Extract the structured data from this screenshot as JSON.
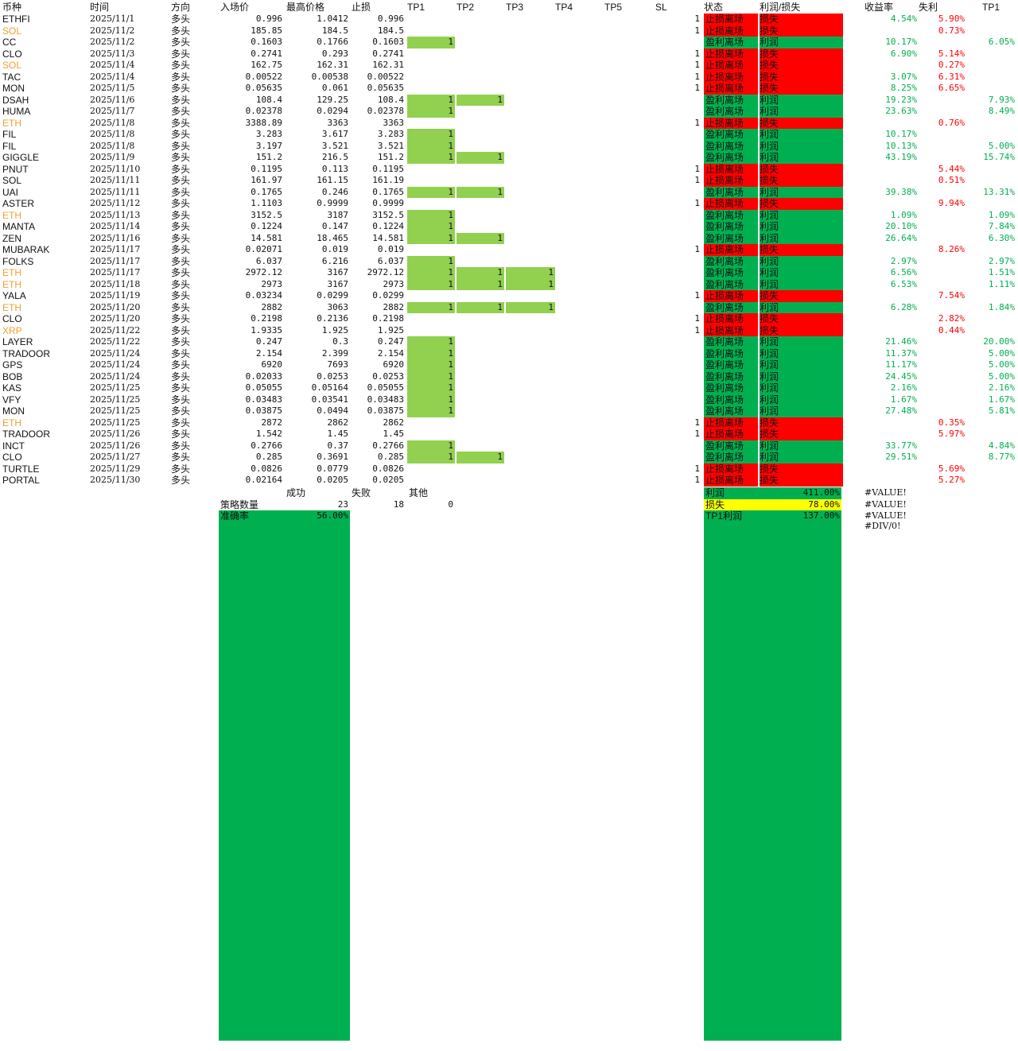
{
  "colors": {
    "tp_fill": "#92d050",
    "status_fail": "#ff0000",
    "status_win": "#00b050",
    "positive_text": "#00b050",
    "negative_text": "#ff0000",
    "highlight_coin": "#f0a030",
    "yellow": "#ffff00"
  },
  "headers": [
    "币种",
    "时间",
    "方向",
    "入场价",
    "最高价格",
    "止损",
    "TP1",
    "TP2",
    "TP3",
    "TP4",
    "TP5",
    "SL",
    "状态",
    "利润/损失",
    "收益率",
    "失利",
    "TP1"
  ],
  "rows": [
    {
      "coin": "ETHFI",
      "hl": false,
      "date": "2025/11/1",
      "dir": "多头",
      "entry": "0.996",
      "high": "1.0412",
      "stop": "0.996",
      "tp1": "",
      "tp2": "",
      "tp3": "",
      "sl": "1",
      "status": "止损离场",
      "pl": "损失",
      "ret": "4.54%",
      "loss": "5.90%",
      "tp1p": ""
    },
    {
      "coin": "SOL",
      "hl": true,
      "date": "2025/11/2",
      "dir": "多头",
      "entry": "185.85",
      "high": "184.5",
      "stop": "184.5",
      "tp1": "",
      "tp2": "",
      "tp3": "",
      "sl": "1",
      "status": "止损离场",
      "pl": "损失",
      "ret": "",
      "loss": "0.73%",
      "tp1p": ""
    },
    {
      "coin": "CC",
      "hl": false,
      "date": "2025/11/2",
      "dir": "多头",
      "entry": "0.1603",
      "high": "0.1766",
      "stop": "0.1603",
      "tp1": "1",
      "tp2": "",
      "tp3": "",
      "sl": "",
      "status": "盈利离场",
      "pl": "利润",
      "ret": "10.17%",
      "loss": "",
      "tp1p": "6.05%"
    },
    {
      "coin": "CLO",
      "hl": false,
      "date": "2025/11/3",
      "dir": "多头",
      "entry": "0.2741",
      "high": "0.293",
      "stop": "0.2741",
      "tp1": "",
      "tp2": "",
      "tp3": "",
      "sl": "1",
      "status": "止损离场",
      "pl": "损失",
      "ret": "6.90%",
      "loss": "5.14%",
      "tp1p": ""
    },
    {
      "coin": "SOL",
      "hl": true,
      "date": "2025/11/4",
      "dir": "多头",
      "entry": "162.75",
      "high": "162.31",
      "stop": "162.31",
      "tp1": "",
      "tp2": "",
      "tp3": "",
      "sl": "1",
      "status": "止损离场",
      "pl": "损失",
      "ret": "",
      "loss": "0.27%",
      "tp1p": ""
    },
    {
      "coin": "TAC",
      "hl": false,
      "date": "2025/11/4",
      "dir": "多头",
      "entry": "0.00522",
      "high": "0.00538",
      "stop": "0.00522",
      "tp1": "",
      "tp2": "",
      "tp3": "",
      "sl": "1",
      "status": "止损离场",
      "pl": "损失",
      "ret": "3.07%",
      "loss": "6.31%",
      "tp1p": ""
    },
    {
      "coin": "MON",
      "hl": false,
      "date": "2025/11/5",
      "dir": "多头",
      "entry": "0.05635",
      "high": "0.061",
      "stop": "0.05635",
      "tp1": "",
      "tp2": "",
      "tp3": "",
      "sl": "1",
      "status": "止损离场",
      "pl": "损失",
      "ret": "8.25%",
      "loss": "6.65%",
      "tp1p": ""
    },
    {
      "coin": "DSAH",
      "hl": false,
      "date": "2025/11/6",
      "dir": "多头",
      "entry": "108.4",
      "high": "129.25",
      "stop": "108.4",
      "tp1": "1",
      "tp2": "1",
      "tp3": "",
      "sl": "",
      "status": "盈利离场",
      "pl": "利润",
      "ret": "19.23%",
      "loss": "",
      "tp1p": "7.93%"
    },
    {
      "coin": "HUMA",
      "hl": false,
      "date": "2025/11/7",
      "dir": "多头",
      "entry": "0.02378",
      "high": "0.0294",
      "stop": "0.02378",
      "tp1": "1",
      "tp2": "",
      "tp3": "",
      "sl": "",
      "status": "盈利离场",
      "pl": "利润",
      "ret": "23.63%",
      "loss": "",
      "tp1p": "8.49%"
    },
    {
      "coin": "ETH",
      "hl": true,
      "date": "2025/11/8",
      "dir": "多头",
      "entry": "3388.89",
      "high": "3363",
      "stop": "3363",
      "tp1": "",
      "tp2": "",
      "tp3": "",
      "sl": "1",
      "status": "止损离场",
      "pl": "损失",
      "ret": "",
      "loss": "0.76%",
      "tp1p": ""
    },
    {
      "coin": "FIL",
      "hl": false,
      "date": "2025/11/8",
      "dir": "多头",
      "entry": "3.283",
      "high": "3.617",
      "stop": "3.283",
      "tp1": "1",
      "tp2": "",
      "tp3": "",
      "sl": "",
      "status": "盈利离场",
      "pl": "利润",
      "ret": "10.17%",
      "loss": "",
      "tp1p": ""
    },
    {
      "coin": "FIL",
      "hl": false,
      "date": "2025/11/8",
      "dir": "多头",
      "entry": "3.197",
      "high": "3.521",
      "stop": "3.521",
      "tp1": "1",
      "tp2": "",
      "tp3": "",
      "sl": "",
      "status": "盈利离场",
      "pl": "利润",
      "ret": "10.13%",
      "loss": "",
      "tp1p": "5.00%"
    },
    {
      "coin": "GIGGLE",
      "hl": false,
      "date": "2025/11/9",
      "dir": "多头",
      "entry": "151.2",
      "high": "216.5",
      "stop": "151.2",
      "tp1": "1",
      "tp2": "1",
      "tp3": "",
      "sl": "",
      "status": "盈利离场",
      "pl": "利润",
      "ret": "43.19%",
      "loss": "",
      "tp1p": "15.74%"
    },
    {
      "coin": "PNUT",
      "hl": false,
      "date": "2025/11/10",
      "dir": "多头",
      "entry": "0.1195",
      "high": "0.113",
      "stop": "0.1195",
      "tp1": "",
      "tp2": "",
      "tp3": "",
      "sl": "1",
      "status": "止损离场",
      "pl": "损失",
      "ret": "",
      "loss": "5.44%",
      "tp1p": ""
    },
    {
      "coin": "SOL",
      "hl": false,
      "date": "2025/11/11",
      "dir": "多头",
      "entry": "161.97",
      "high": "161.15",
      "stop": "161.19",
      "tp1": "",
      "tp2": "",
      "tp3": "",
      "sl": "1",
      "status": "止损离场",
      "pl": "损失",
      "ret": "",
      "loss": "0.51%",
      "tp1p": ""
    },
    {
      "coin": "UAI",
      "hl": false,
      "date": "2025/11/11",
      "dir": "多头",
      "entry": "0.1765",
      "high": "0.246",
      "stop": "0.1765",
      "tp1": "1",
      "tp2": "1",
      "tp3": "",
      "sl": "",
      "status": "盈利离场",
      "pl": "利润",
      "ret": "39.38%",
      "loss": "",
      "tp1p": "13.31%"
    },
    {
      "coin": "ASTER",
      "hl": false,
      "date": "2025/11/12",
      "dir": "多头",
      "entry": "1.1103",
      "high": "0.9999",
      "stop": "0.9999",
      "tp1": "",
      "tp2": "",
      "tp3": "",
      "sl": "1",
      "status": "止损离场",
      "pl": "损失",
      "ret": "",
      "loss": "9.94%",
      "tp1p": ""
    },
    {
      "coin": "ETH",
      "hl": true,
      "date": "2025/11/13",
      "dir": "多头",
      "entry": "3152.5",
      "high": "3187",
      "stop": "3152.5",
      "tp1": "1",
      "tp2": "",
      "tp3": "",
      "sl": "",
      "status": "盈利离场",
      "pl": "利润",
      "ret": "1.09%",
      "loss": "",
      "tp1p": "1.09%"
    },
    {
      "coin": "MANTA",
      "hl": false,
      "date": "2025/11/14",
      "dir": "多头",
      "entry": "0.1224",
      "high": "0.147",
      "stop": "0.1224",
      "tp1": "1",
      "tp2": "",
      "tp3": "",
      "sl": "",
      "status": "盈利离场",
      "pl": "利润",
      "ret": "20.10%",
      "loss": "",
      "tp1p": "7.84%"
    },
    {
      "coin": "ZEN",
      "hl": false,
      "date": "2025/11/16",
      "dir": "多头",
      "entry": "14.581",
      "high": "18.465",
      "stop": "14.581",
      "tp1": "1",
      "tp2": "1",
      "tp3": "",
      "sl": "",
      "status": "盈利离场",
      "pl": "利润",
      "ret": "26.64%",
      "loss": "",
      "tp1p": "6.30%"
    },
    {
      "coin": "MUBARAK",
      "hl": false,
      "date": "2025/11/17",
      "dir": "多头",
      "entry": "0.02071",
      "high": "0.019",
      "stop": "0.019",
      "tp1": "",
      "tp2": "",
      "tp3": "",
      "sl": "1",
      "status": "止损离场",
      "pl": "损失",
      "ret": "",
      "loss": "8.26%",
      "tp1p": ""
    },
    {
      "coin": "FOLKS",
      "hl": false,
      "date": "2025/11/17",
      "dir": "多头",
      "entry": "6.037",
      "high": "6.216",
      "stop": "6.037",
      "tp1": "1",
      "tp2": "",
      "tp3": "",
      "sl": "",
      "status": "盈利离场",
      "pl": "利润",
      "ret": "2.97%",
      "loss": "",
      "tp1p": "2.97%"
    },
    {
      "coin": "ETH",
      "hl": true,
      "date": "2025/11/17",
      "dir": "多头",
      "entry": "2972.12",
      "high": "3167",
      "stop": "2972.12",
      "tp1": "1",
      "tp2": "1",
      "tp3": "1",
      "sl": "",
      "status": "盈利离场",
      "pl": "利润",
      "ret": "6.56%",
      "loss": "",
      "tp1p": "1.51%"
    },
    {
      "coin": "ETH",
      "hl": true,
      "date": "2025/11/18",
      "dir": "多头",
      "entry": "2973",
      "high": "3167",
      "stop": "2973",
      "tp1": "1",
      "tp2": "1",
      "tp3": "1",
      "sl": "",
      "status": "盈利离场",
      "pl": "利润",
      "ret": "6.53%",
      "loss": "",
      "tp1p": "1.11%"
    },
    {
      "coin": "YALA",
      "hl": false,
      "date": "2025/11/19",
      "dir": "多头",
      "entry": "0.03234",
      "high": "0.0299",
      "stop": "0.0299",
      "tp1": "",
      "tp2": "",
      "tp3": "",
      "sl": "1",
      "status": "止损离场",
      "pl": "损失",
      "ret": "",
      "loss": "7.54%",
      "tp1p": ""
    },
    {
      "coin": "ETH",
      "hl": true,
      "date": "2025/11/20",
      "dir": "多头",
      "entry": "2882",
      "high": "3063",
      "stop": "2882",
      "tp1": "1",
      "tp2": "1",
      "tp3": "1",
      "sl": "",
      "status": "盈利离场",
      "pl": "利润",
      "ret": "6.28%",
      "loss": "",
      "tp1p": "1.84%"
    },
    {
      "coin": "CLO",
      "hl": false,
      "date": "2025/11/20",
      "dir": "多头",
      "entry": "0.2198",
      "high": "0.2136",
      "stop": "0.2198",
      "tp1": "",
      "tp2": "",
      "tp3": "",
      "sl": "1",
      "status": "止损离场",
      "pl": "损失",
      "ret": "",
      "loss": "2.82%",
      "tp1p": ""
    },
    {
      "coin": "XRP",
      "hl": true,
      "date": "2025/11/22",
      "dir": "多头",
      "entry": "1.9335",
      "high": "1.925",
      "stop": "1.925",
      "tp1": "",
      "tp2": "",
      "tp3": "",
      "sl": "1",
      "status": "止损离场",
      "pl": "损失",
      "ret": "",
      "loss": "0.44%",
      "tp1p": ""
    },
    {
      "coin": "LAYER",
      "hl": false,
      "date": "2025/11/22",
      "dir": "多头",
      "entry": "0.247",
      "high": "0.3",
      "stop": "0.247",
      "tp1": "1",
      "tp2": "",
      "tp3": "",
      "sl": "",
      "status": "盈利离场",
      "pl": "利润",
      "ret": "21.46%",
      "loss": "",
      "tp1p": "20.00%"
    },
    {
      "coin": "TRADOOR",
      "hl": false,
      "date": "2025/11/24",
      "dir": "多头",
      "entry": "2.154",
      "high": "2.399",
      "stop": "2.154",
      "tp1": "1",
      "tp2": "",
      "tp3": "",
      "sl": "",
      "status": "盈利离场",
      "pl": "利润",
      "ret": "11.37%",
      "loss": "",
      "tp1p": "5.00%"
    },
    {
      "coin": "GPS",
      "hl": false,
      "date": "2025/11/24",
      "dir": "多头",
      "entry": "6920",
      "high": "7693",
      "stop": "6920",
      "tp1": "1",
      "tp2": "",
      "tp3": "",
      "sl": "",
      "status": "盈利离场",
      "pl": "利润",
      "ret": "11.17%",
      "loss": "",
      "tp1p": "5.00%"
    },
    {
      "coin": "BOB",
      "hl": false,
      "date": "2025/11/24",
      "dir": "多头",
      "entry": "0.02033",
      "high": "0.0253",
      "stop": "0.0253",
      "tp1": "1",
      "tp2": "",
      "tp3": "",
      "sl": "",
      "status": "盈利离场",
      "pl": "利润",
      "ret": "24.45%",
      "loss": "",
      "tp1p": "5.00%"
    },
    {
      "coin": "KAS",
      "hl": false,
      "date": "2025/11/25",
      "dir": "多头",
      "entry": "0.05055",
      "high": "0.05164",
      "stop": "0.05055",
      "tp1": "1",
      "tp2": "",
      "tp3": "",
      "sl": "",
      "status": "盈利离场",
      "pl": "利润",
      "ret": "2.16%",
      "loss": "",
      "tp1p": "2.16%"
    },
    {
      "coin": "VFY",
      "hl": false,
      "date": "2025/11/25",
      "dir": "多头",
      "entry": "0.03483",
      "high": "0.03541",
      "stop": "0.03483",
      "tp1": "1",
      "tp2": "",
      "tp3": "",
      "sl": "",
      "status": "盈利离场",
      "pl": "利润",
      "ret": "1.67%",
      "loss": "",
      "tp1p": "1.67%"
    },
    {
      "coin": "MON",
      "hl": false,
      "date": "2025/11/25",
      "dir": "多头",
      "entry": "0.03875",
      "high": "0.0494",
      "stop": "0.03875",
      "tp1": "1",
      "tp2": "",
      "tp3": "",
      "sl": "",
      "status": "盈利离场",
      "pl": "利润",
      "ret": "27.48%",
      "loss": "",
      "tp1p": "5.81%"
    },
    {
      "coin": "ETH",
      "hl": true,
      "date": "2025/11/25",
      "dir": "多头",
      "entry": "2872",
      "high": "2862",
      "stop": "2862",
      "tp1": "",
      "tp2": "",
      "tp3": "",
      "sl": "1",
      "status": "止损离场",
      "pl": "损失",
      "ret": "",
      "loss": "0.35%",
      "tp1p": ""
    },
    {
      "coin": "TRADOOR",
      "hl": false,
      "date": "2025/11/26",
      "dir": "多头",
      "entry": "1.542",
      "high": "1.45",
      "stop": "1.45",
      "tp1": "",
      "tp2": "",
      "tp3": "",
      "sl": "1",
      "status": "止损离场",
      "pl": "损失",
      "ret": "",
      "loss": "5.97%",
      "tp1p": ""
    },
    {
      "coin": "INCT",
      "hl": false,
      "date": "2025/11/26",
      "dir": "多头",
      "entry": "0.2766",
      "high": "0.37",
      "stop": "0.2766",
      "tp1": "1",
      "tp2": "",
      "tp3": "",
      "sl": "",
      "status": "盈利离场",
      "pl": "利润",
      "ret": "33.77%",
      "loss": "",
      "tp1p": "4.84%"
    },
    {
      "coin": "CLO",
      "hl": false,
      "date": "2025/11/27",
      "dir": "多头",
      "entry": "0.285",
      "high": "0.3691",
      "stop": "0.285",
      "tp1": "1",
      "tp2": "1",
      "tp3": "",
      "sl": "",
      "status": "盈利离场",
      "pl": "利润",
      "ret": "29.51%",
      "loss": "",
      "tp1p": "8.77%"
    },
    {
      "coin": "TURTLE",
      "hl": false,
      "date": "2025/11/29",
      "dir": "多头",
      "entry": "0.0826",
      "high": "0.0779",
      "stop": "0.0826",
      "tp1": "",
      "tp2": "",
      "tp3": "",
      "sl": "1",
      "status": "止损离场",
      "pl": "损失",
      "ret": "",
      "loss": "5.69%",
      "tp1p": ""
    },
    {
      "coin": "PORTAL",
      "hl": false,
      "date": "2025/11/30",
      "dir": "多头",
      "entry": "0.02164",
      "high": "0.0205",
      "stop": "0.0205",
      "tp1": "",
      "tp2": "",
      "tp3": "",
      "sl": "1",
      "status": "止损离场",
      "pl": "损失",
      "ret": "",
      "loss": "5.27%",
      "tp1p": ""
    }
  ],
  "summary": {
    "success_label": "成功",
    "fail_label": "失败",
    "other_label": "其他",
    "count_label": "策略数量",
    "success_count": "23",
    "fail_count": "18",
    "other_count": "0",
    "accuracy_label": "准确率",
    "accuracy_value": "56.00%",
    "profit_label": "利润",
    "profit_value": "411.00%",
    "loss_label": "损失",
    "loss_value": "78.00%",
    "tp1_label": "TP1利润",
    "tp1_value": "137.00%",
    "errors": [
      "#VALUE!",
      "#VALUE!",
      "#VALUE!",
      "#DIV/0!"
    ]
  }
}
